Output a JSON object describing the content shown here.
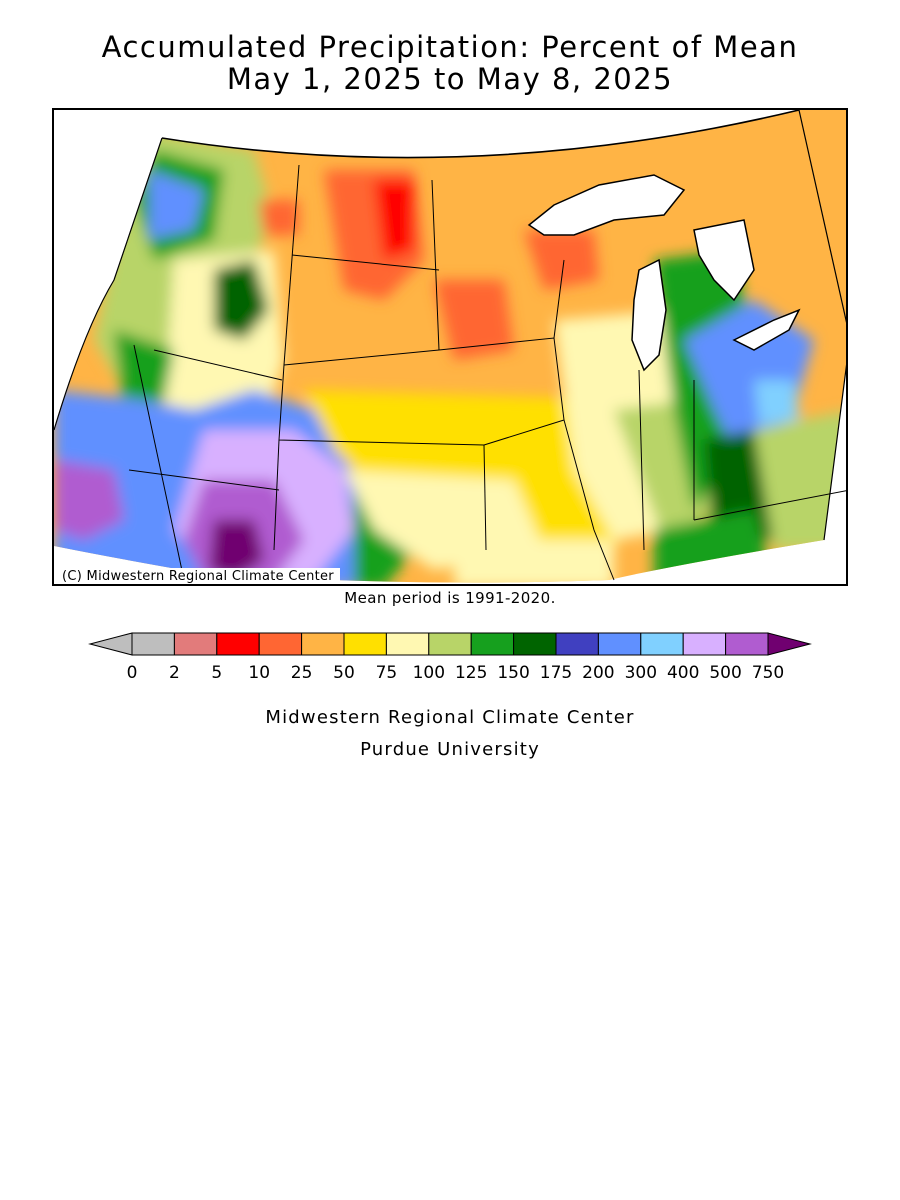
{
  "title": {
    "line1": "Accumulated Precipitation: Percent of Mean",
    "line2": "May 1, 2025 to May 8, 2025"
  },
  "map": {
    "credit": "(C) Midwestern Regional Climate Center",
    "region": "Midwest and Northern Plains United States",
    "colors": {
      "below_2": "#bebebe",
      "2_5": "#e27b7b",
      "5_10": "#ff0000",
      "10_25": "#ff6633",
      "25_50": "#ffb445",
      "50_75": "#ffe000",
      "75_100": "#fff8b2",
      "100_125": "#b8d468",
      "125_150": "#16a01e",
      "150_175": "#006400",
      "175_200": "#4040c0",
      "200_300": "#6090ff",
      "300_400": "#80d0ff",
      "400_500": "#d8b0ff",
      "500_750": "#b05cd0",
      "above_750": "#700070"
    }
  },
  "mean_note": "Mean period is 1991-2020.",
  "legend": {
    "colors": [
      "#bebebe",
      "#e27b7b",
      "#ff0000",
      "#ff6633",
      "#ffb445",
      "#ffe000",
      "#fff8b2",
      "#b8d468",
      "#16a01e",
      "#006400",
      "#4040c0",
      "#6090ff",
      "#80d0ff",
      "#d8b0ff",
      "#b05cd0"
    ],
    "under_color": "#bebebe",
    "over_color": "#700070",
    "labels": [
      "0",
      "2",
      "5",
      "10",
      "25",
      "50",
      "75",
      "100",
      "125",
      "150",
      "175",
      "200",
      "300",
      "400",
      "500",
      "750"
    ]
  },
  "footer": {
    "line1": "Midwestern Regional Climate Center",
    "line2": "Purdue University"
  }
}
